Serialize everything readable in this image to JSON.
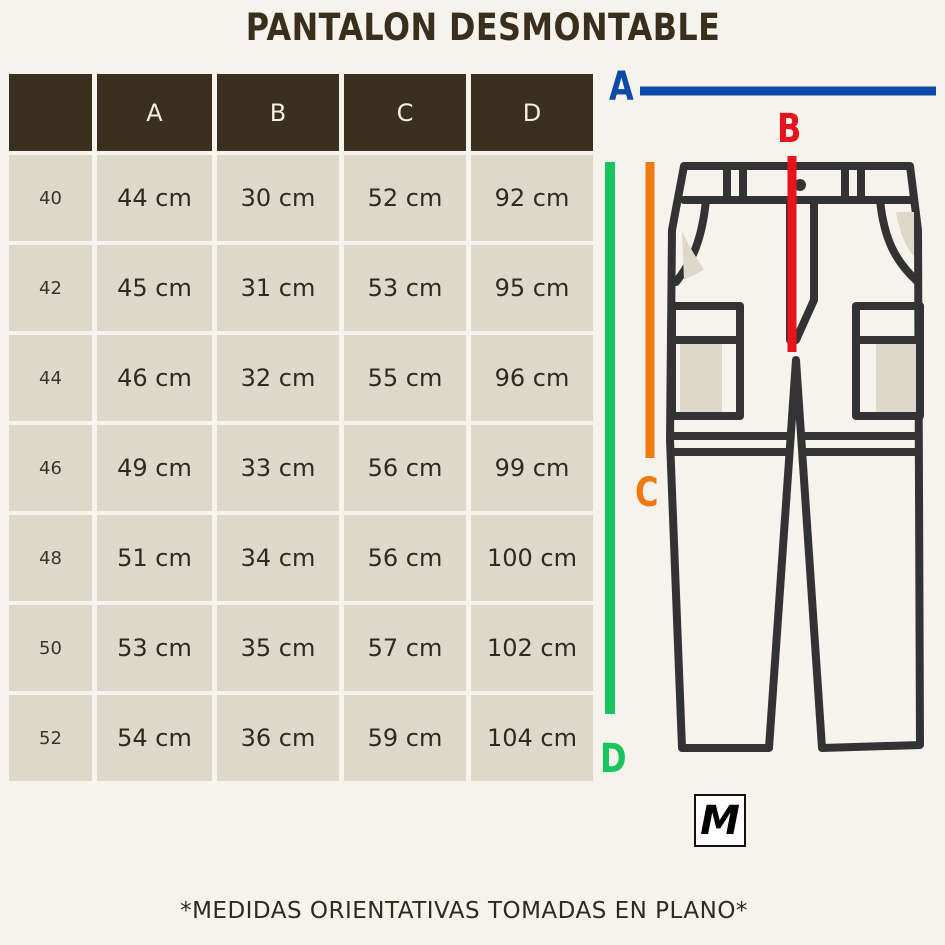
{
  "title": "PANTALON DESMONTABLE",
  "table": {
    "headers": [
      "",
      "A",
      "B",
      "C",
      "D"
    ],
    "rows": [
      [
        "40",
        "44 cm",
        "30 cm",
        "52 cm",
        "92 cm"
      ],
      [
        "42",
        "45 cm",
        "31 cm",
        "53 cm",
        "95 cm"
      ],
      [
        "44",
        "46 cm",
        "32 cm",
        "55 cm",
        "96 cm"
      ],
      [
        "46",
        "49 cm",
        "33 cm",
        "56 cm",
        "99 cm"
      ],
      [
        "48",
        "51 cm",
        "34 cm",
        "56 cm",
        "100 cm"
      ],
      [
        "50",
        "53 cm",
        "35 cm",
        "57 cm",
        "102 cm"
      ],
      [
        "52",
        "54 cm",
        "36 cm",
        "59 cm",
        "104 cm"
      ]
    ]
  },
  "diagram": {
    "labels": {
      "a": "A",
      "b": "B",
      "c": "C",
      "d": "D"
    },
    "colors": {
      "a": "#0d4aa6",
      "b": "#e8141c",
      "c": "#f07a10",
      "d": "#17c45e"
    }
  },
  "logo": {
    "letter": "M"
  },
  "footer": "*MEDIDAS ORIENTATIVAS TOMADAS EN PLANO*"
}
